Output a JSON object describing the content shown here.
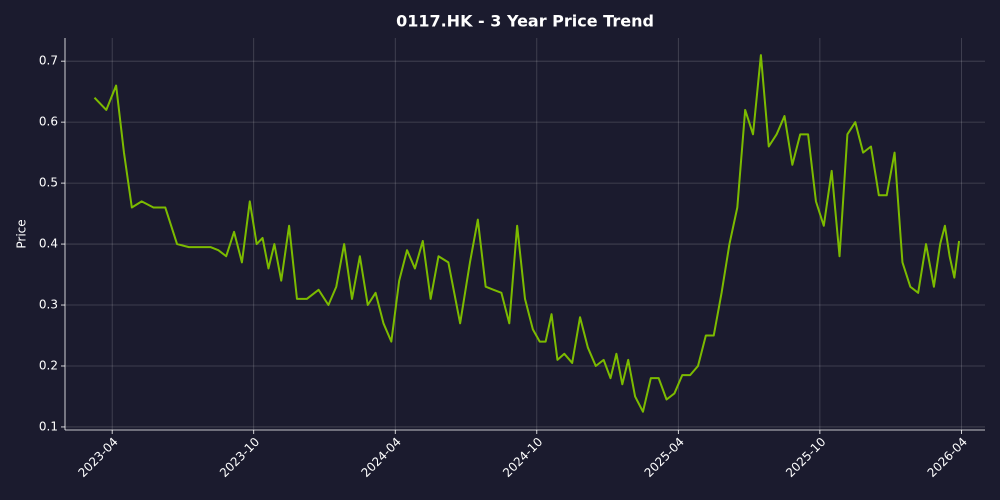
{
  "chart_data": {
    "type": "line",
    "title": "0117.HK - 3 Year Price Trend",
    "y_label": "Price",
    "x": [
      "2023-03",
      "2023-03",
      "2023-04",
      "2023-04",
      "2023-04",
      "2023-05",
      "2023-05",
      "2023-06",
      "2023-06",
      "2023-07",
      "2023-07",
      "2023-08",
      "2023-08",
      "2023-08",
      "2023-09",
      "2023-09",
      "2023-09",
      "2023-10",
      "2023-10",
      "2023-10",
      "2023-10",
      "2023-11",
      "2023-11",
      "2023-11",
      "2023-12",
      "2023-12",
      "2024-01",
      "2024-01",
      "2024-01",
      "2024-02",
      "2024-02",
      "2024-02",
      "2024-03",
      "2024-03",
      "2024-03",
      "2024-04",
      "2024-04",
      "2024-04",
      "2024-05",
      "2024-05",
      "2024-05",
      "2024-06",
      "2024-06",
      "2024-07",
      "2024-07",
      "2024-07",
      "2024-08",
      "2024-08",
      "2024-08",
      "2024-09",
      "2024-09",
      "2024-09",
      "2024-10",
      "2024-10",
      "2024-10",
      "2024-10",
      "2024-11",
      "2024-11",
      "2024-11",
      "2024-12",
      "2024-12",
      "2024-12",
      "2025-01",
      "2025-01",
      "2025-01",
      "2025-01",
      "2025-02",
      "2025-02",
      "2025-02",
      "2025-03",
      "2025-03",
      "2025-03",
      "2025-04",
      "2025-04",
      "2025-04",
      "2025-05",
      "2025-05",
      "2025-05",
      "2025-06",
      "2025-06",
      "2025-06",
      "2025-07",
      "2025-07",
      "2025-07",
      "2025-08",
      "2025-08",
      "2025-08",
      "2025-09",
      "2025-09",
      "2025-09",
      "2025-10",
      "2025-10",
      "2025-10",
      "2025-11",
      "2025-11",
      "2025-11",
      "2025-12",
      "2025-12",
      "2025-12",
      "2026-01",
      "2026-01",
      "2026-01",
      "2026-02",
      "2026-02",
      "2026-02",
      "2026-03",
      "2026-03",
      "2026-03",
      "2026-03",
      "2026-03"
    ],
    "series": [
      {
        "name": "0117.HK",
        "color": "#7cbb00",
        "values": [
          0.64,
          0.62,
          0.66,
          0.55,
          0.46,
          0.47,
          0.46,
          0.46,
          0.4,
          0.395,
          0.395,
          0.395,
          0.39,
          0.38,
          0.42,
          0.37,
          0.47,
          0.4,
          0.41,
          0.36,
          0.4,
          0.34,
          0.43,
          0.31,
          0.31,
          0.325,
          0.3,
          0.33,
          0.4,
          0.31,
          0.38,
          0.3,
          0.32,
          0.27,
          0.24,
          0.34,
          0.39,
          0.36,
          0.405,
          0.31,
          0.38,
          0.37,
          0.27,
          0.37,
          0.44,
          0.33,
          0.325,
          0.32,
          0.27,
          0.43,
          0.31,
          0.26,
          0.24,
          0.24,
          0.285,
          0.21,
          0.22,
          0.205,
          0.28,
          0.23,
          0.2,
          0.21,
          0.18,
          0.22,
          0.17,
          0.21,
          0.15,
          0.125,
          0.18,
          0.18,
          0.145,
          0.155,
          0.185,
          0.185,
          0.2,
          0.25,
          0.25,
          0.32,
          0.4,
          0.46,
          0.62,
          0.58,
          0.71,
          0.56,
          0.58,
          0.61,
          0.53,
          0.58,
          0.58,
          0.47,
          0.43,
          0.52,
          0.38,
          0.58,
          0.6,
          0.55,
          0.56,
          0.48,
          0.48,
          0.55,
          0.37,
          0.33,
          0.32,
          0.4,
          0.33,
          0.4,
          0.43,
          0.38,
          0.345,
          0.405
        ]
      }
    ],
    "xlim": [
      "2023-02",
      "2026-05"
    ],
    "xticks": [
      "2023-04",
      "2023-10",
      "2024-04",
      "2024-10",
      "2025-04",
      "2025-10",
      "2026-04"
    ],
    "ylim": [
      0.095,
      0.738
    ],
    "yticks": [
      0.1,
      0.2,
      0.3,
      0.4,
      0.5,
      0.6,
      0.7
    ],
    "grid": true
  }
}
